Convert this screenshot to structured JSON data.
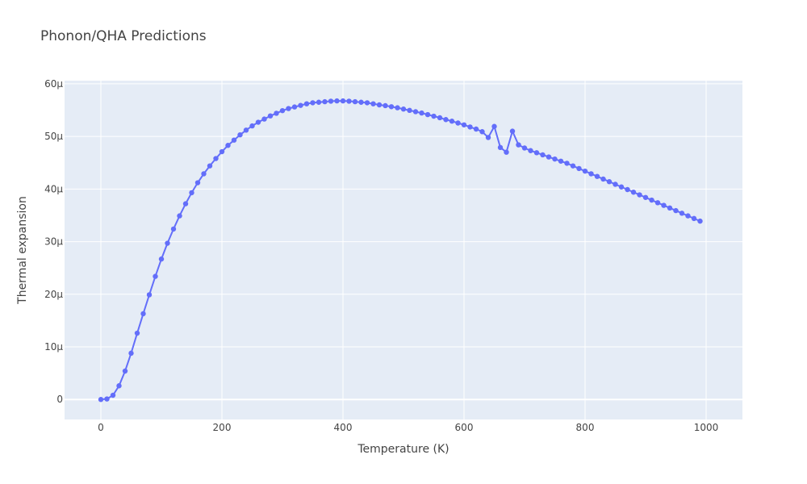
{
  "chart_data": {
    "type": "line",
    "title": "Phonon/QHA Predictions",
    "xlabel": "Temperature (K)",
    "ylabel": "Thermal expansion",
    "xlim": [
      -60,
      1060
    ],
    "ylim": [
      -3.8e-06,
      6.06e-05
    ],
    "x_ticks": [
      0,
      200,
      400,
      600,
      800,
      1000
    ],
    "x_tick_labels": [
      "0",
      "200",
      "400",
      "600",
      "800",
      "1000"
    ],
    "y_ticks": [
      0,
      1e-05,
      2e-05,
      3e-05,
      4e-05,
      5e-05,
      6e-05
    ],
    "y_tick_labels": [
      "0",
      "10μ",
      "20μ",
      "30μ",
      "40μ",
      "50μ",
      "60μ"
    ],
    "grid": true,
    "colors": {
      "line": "#636efa",
      "plot_bg": "#e5ecf6",
      "grid": "#ffffff",
      "text": "#444444"
    },
    "series": [
      {
        "mode": "lines+markers",
        "x": [
          0,
          10,
          20,
          30,
          40,
          50,
          60,
          70,
          80,
          90,
          100,
          110,
          120,
          130,
          140,
          150,
          160,
          170,
          180,
          190,
          200,
          210,
          220,
          230,
          240,
          250,
          260,
          270,
          280,
          290,
          300,
          310,
          320,
          330,
          340,
          350,
          360,
          370,
          380,
          390,
          400,
          410,
          420,
          430,
          440,
          450,
          460,
          470,
          480,
          490,
          500,
          510,
          520,
          530,
          540,
          550,
          560,
          570,
          580,
          590,
          600,
          610,
          620,
          630,
          640,
          650,
          660,
          670,
          680,
          690,
          700,
          710,
          720,
          730,
          740,
          750,
          760,
          770,
          780,
          790,
          800,
          810,
          820,
          830,
          840,
          850,
          860,
          870,
          880,
          890,
          900,
          910,
          920,
          930,
          940,
          950,
          960,
          970,
          980,
          990
        ],
        "y": [
          0,
          1e-07,
          8e-07,
          2.6e-06,
          5.4e-06,
          8.8e-06,
          1.26e-05,
          1.63e-05,
          1.99e-05,
          2.34e-05,
          2.67e-05,
          2.97e-05,
          3.24e-05,
          3.49e-05,
          3.72e-05,
          3.93e-05,
          4.12e-05,
          4.29e-05,
          4.44e-05,
          4.58e-05,
          4.71e-05,
          4.83e-05,
          4.93e-05,
          5.03e-05,
          5.12e-05,
          5.2e-05,
          5.27e-05,
          5.33e-05,
          5.39e-05,
          5.44e-05,
          5.49e-05,
          5.53e-05,
          5.56e-05,
          5.59e-05,
          5.62e-05,
          5.64e-05,
          5.65e-05,
          5.66e-05,
          5.67e-05,
          5.675e-05,
          5.675e-05,
          5.67e-05,
          5.66e-05,
          5.65e-05,
          5.64e-05,
          5.62e-05,
          5.6e-05,
          5.585e-05,
          5.565e-05,
          5.545e-05,
          5.52e-05,
          5.495e-05,
          5.47e-05,
          5.445e-05,
          5.415e-05,
          5.385e-05,
          5.355e-05,
          5.32e-05,
          5.29e-05,
          5.255e-05,
          5.22e-05,
          5.18e-05,
          5.14e-05,
          5.09e-05,
          4.98e-05,
          5.19e-05,
          4.79e-05,
          4.7e-05,
          5.1e-05,
          4.84e-05,
          4.78e-05,
          4.73e-05,
          4.69e-05,
          4.65e-05,
          4.61e-05,
          4.57e-05,
          4.53e-05,
          4.49e-05,
          4.44e-05,
          4.39e-05,
          4.34e-05,
          4.29e-05,
          4.24e-05,
          4.19e-05,
          4.14e-05,
          4.09e-05,
          4.04e-05,
          3.99e-05,
          3.94e-05,
          3.89e-05,
          3.84e-05,
          3.79e-05,
          3.74e-05,
          3.69e-05,
          3.64e-05,
          3.59e-05,
          3.54e-05,
          3.49e-05,
          3.44e-05,
          3.39e-05
        ]
      }
    ]
  }
}
